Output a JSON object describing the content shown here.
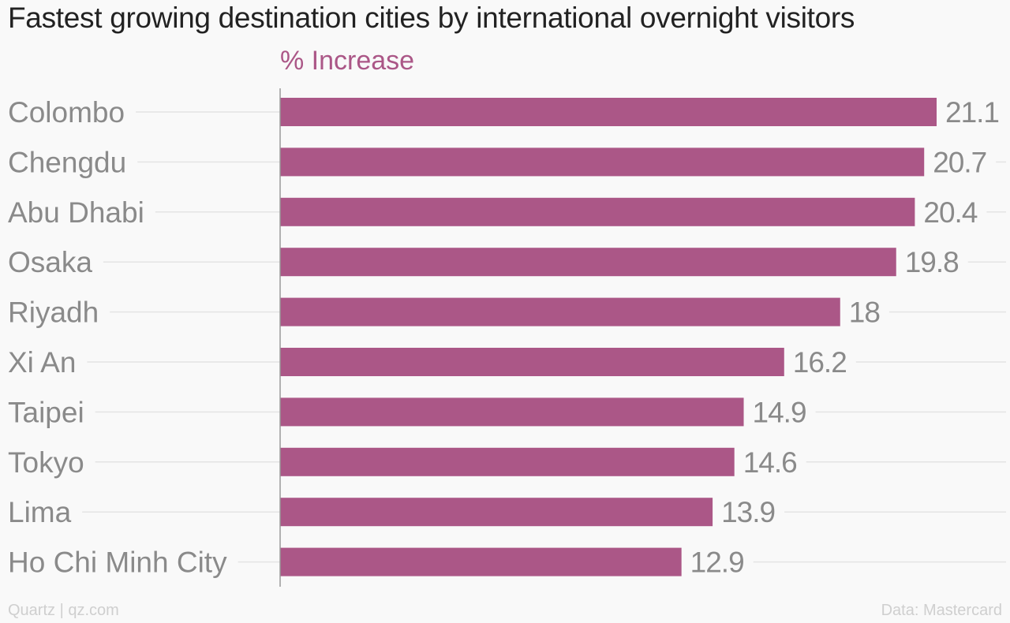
{
  "chart_data": {
    "type": "bar",
    "orientation": "horizontal",
    "title": "Fastest growing destination cities by international overnight visitors",
    "series_label": "% Increase",
    "categories": [
      "Colombo",
      "Chengdu",
      "Abu Dhabi",
      "Osaka",
      "Riyadh",
      "Xi An",
      "Taipei",
      "Tokyo",
      "Lima",
      "Ho Chi Minh City"
    ],
    "values": [
      21.1,
      20.7,
      20.4,
      19.8,
      18,
      16.2,
      14.9,
      14.6,
      13.9,
      12.9
    ],
    "value_labels": [
      "21.1",
      "20.7",
      "20.4",
      "19.8",
      "18",
      "16.2",
      "14.9",
      "14.6",
      "13.9",
      "12.9"
    ],
    "xlim": [
      0,
      21.1
    ],
    "grid": true,
    "legend": "none"
  },
  "footer": {
    "source_left": "Quartz | qz.com",
    "source_right": "Data: Mastercard"
  },
  "colors": {
    "bar": "#ab5787",
    "label_text": "#8a8a8a",
    "gridline": "#e4e4e4",
    "axis": "#999999"
  }
}
